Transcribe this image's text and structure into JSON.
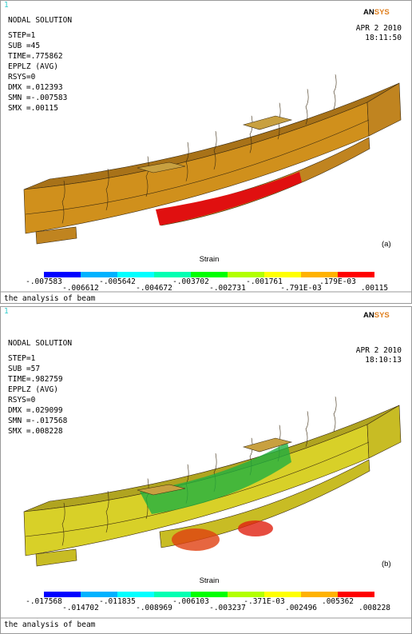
{
  "colors": [
    "#0000ff",
    "#00b2ff",
    "#00ffff",
    "#00ffb2",
    "#00ff00",
    "#b2ff00",
    "#ffff00",
    "#ffb200",
    "#ff0000"
  ],
  "panels": [
    {
      "mark": "1",
      "header": "NODAL SOLUTION",
      "info": [
        "STEP=1",
        "SUB =45",
        "TIME=.775862",
        "EPPLZ    (AVG)",
        "RSYS=0",
        "DMX =.012393",
        "SMN =-.007583",
        "SMX =.00115"
      ],
      "logo": [
        "AN",
        "SYS"
      ],
      "date": "APR  2 2010",
      "time": "18:11:50",
      "label": "(a)",
      "legend_title": "Strain",
      "legend_top": [
        "-.007583",
        "-.005642",
        "-.003702",
        "-.001761",
        ".179E-03"
      ],
      "legend_bottom": [
        "-.006612",
        "-.004672",
        "-.002731",
        "-.791E-03",
        ".00115"
      ],
      "footer": "the analysis of beam"
    },
    {
      "mark": "1",
      "header": "NODAL SOLUTION",
      "info": [
        "STEP=1",
        "SUB =57",
        "TIME=.982759",
        "EPPLZ    (AVG)",
        "RSYS=0",
        "DMX =.029099",
        "SMN =-.017568",
        "SMX =.008228"
      ],
      "logo": [
        "AN",
        "SYS"
      ],
      "date": "APR  2 2010",
      "time": "18:10:13",
      "label": "(b)",
      "legend_title": "Strain",
      "legend_top": [
        "-.017568",
        "-.011835",
        "-.006103",
        "-.371E-03",
        ".005362"
      ],
      "legend_bottom": [
        "-.014702",
        "-.008969",
        "-.003237",
        ".002496",
        ".008228"
      ],
      "footer": "the analysis of beam"
    }
  ]
}
